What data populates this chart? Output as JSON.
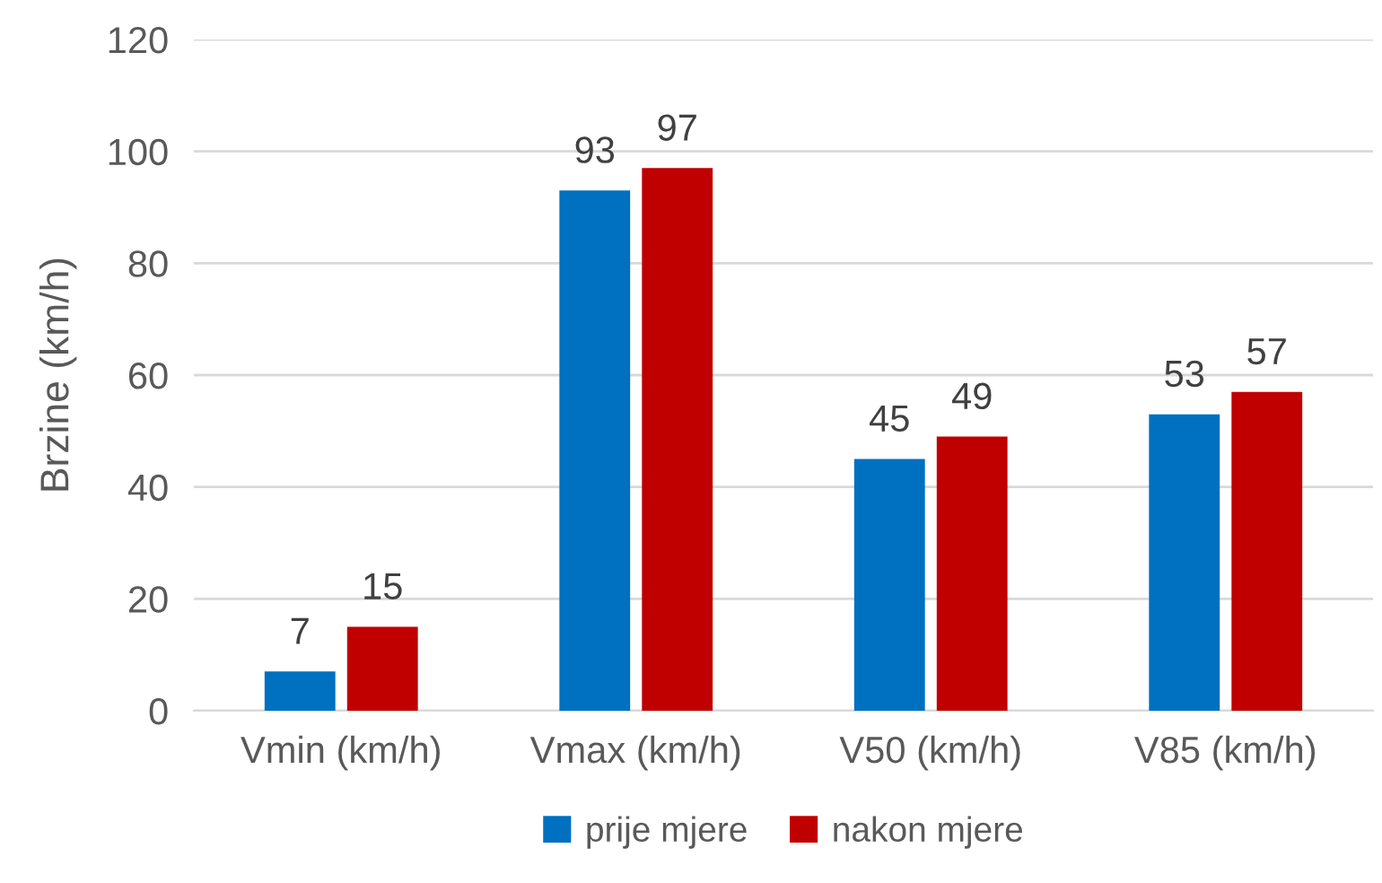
{
  "chart_data": {
    "type": "bar",
    "ylabel": "Brzine (km/h)",
    "categories": [
      "Vmin (km/h)",
      "Vmax (km/h)",
      "V50 (km/h)",
      "V85 (km/h)"
    ],
    "series": [
      {
        "name": "prije mjere",
        "color": "#0070c0",
        "values": [
          7,
          93,
          45,
          53
        ]
      },
      {
        "name": "nakon mjere",
        "color": "#c00000",
        "values": [
          15,
          97,
          49,
          57
        ]
      }
    ],
    "ylim": [
      0,
      120
    ],
    "yticks": [
      0,
      20,
      40,
      60,
      80,
      100,
      120
    ],
    "grid": "y",
    "legend": "bottom",
    "data_labels": true
  }
}
